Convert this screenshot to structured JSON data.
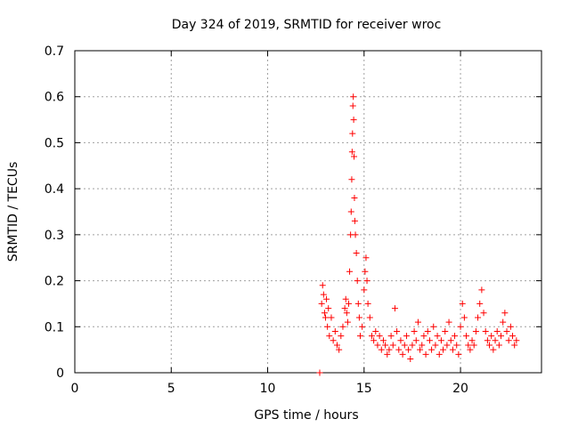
{
  "chart_data": {
    "type": "scatter",
    "title": "Day 324 of 2019, SRMTID for receiver wroc",
    "xlabel": "GPS time / hours",
    "ylabel": "SRMTID / TECUs",
    "xlim": [
      0,
      24.2
    ],
    "ylim": [
      0,
      0.7
    ],
    "x_ticks": [
      0,
      5,
      10,
      15,
      20
    ],
    "x_tick_labels": [
      "0",
      "5",
      "10",
      "15",
      "20"
    ],
    "y_ticks": [
      0,
      0.1,
      0.2,
      0.3,
      0.4,
      0.5,
      0.6,
      0.7
    ],
    "y_tick_labels": [
      "0",
      "0.1",
      "0.2",
      "0.3",
      "0.4",
      "0.5",
      "0.6",
      "0.7"
    ],
    "grid": true,
    "marker": "plus",
    "series": [
      {
        "name": "SRMTID",
        "color": "#ff0000",
        "x": [
          12.7,
          12.8,
          12.85,
          12.9,
          12.95,
          13.0,
          13.05,
          13.1,
          13.15,
          13.2,
          13.3,
          13.4,
          13.5,
          13.6,
          13.7,
          13.8,
          13.9,
          14.0,
          14.05,
          14.1,
          14.15,
          14.2,
          14.25,
          14.3,
          14.33,
          14.36,
          14.38,
          14.4,
          14.42,
          14.44,
          14.46,
          14.48,
          14.5,
          14.52,
          14.55,
          14.6,
          14.65,
          14.7,
          14.75,
          14.8,
          14.9,
          15.0,
          15.05,
          15.1,
          15.15,
          15.2,
          15.3,
          15.4,
          15.5,
          15.6,
          15.7,
          15.8,
          15.9,
          16.0,
          16.1,
          16.2,
          16.3,
          16.4,
          16.5,
          16.6,
          16.7,
          16.8,
          16.9,
          17.0,
          17.1,
          17.2,
          17.3,
          17.4,
          17.5,
          17.6,
          17.7,
          17.8,
          17.9,
          18.0,
          18.1,
          18.2,
          18.3,
          18.4,
          18.5,
          18.6,
          18.7,
          18.8,
          18.9,
          19.0,
          19.1,
          19.2,
          19.3,
          19.4,
          19.5,
          19.6,
          19.7,
          19.8,
          19.9,
          20.0,
          20.1,
          20.2,
          20.3,
          20.4,
          20.5,
          20.6,
          20.7,
          20.8,
          20.9,
          21.0,
          21.1,
          21.2,
          21.3,
          21.4,
          21.5,
          21.6,
          21.7,
          21.8,
          21.9,
          22.0,
          22.1,
          22.2,
          22.3,
          22.4,
          22.5,
          22.6,
          22.7,
          22.8,
          22.9
        ],
        "y": [
          0.0,
          0.15,
          0.19,
          0.17,
          0.13,
          0.12,
          0.16,
          0.1,
          0.14,
          0.08,
          0.12,
          0.07,
          0.09,
          0.06,
          0.05,
          0.08,
          0.1,
          0.14,
          0.16,
          0.13,
          0.11,
          0.15,
          0.22,
          0.3,
          0.35,
          0.42,
          0.48,
          0.52,
          0.58,
          0.6,
          0.55,
          0.47,
          0.38,
          0.33,
          0.3,
          0.26,
          0.2,
          0.15,
          0.12,
          0.08,
          0.1,
          0.18,
          0.22,
          0.25,
          0.2,
          0.15,
          0.12,
          0.08,
          0.07,
          0.09,
          0.06,
          0.08,
          0.05,
          0.07,
          0.06,
          0.04,
          0.05,
          0.08,
          0.06,
          0.14,
          0.09,
          0.05,
          0.07,
          0.04,
          0.06,
          0.08,
          0.05,
          0.03,
          0.06,
          0.09,
          0.07,
          0.11,
          0.05,
          0.06,
          0.08,
          0.04,
          0.09,
          0.07,
          0.05,
          0.1,
          0.06,
          0.08,
          0.04,
          0.07,
          0.05,
          0.09,
          0.06,
          0.11,
          0.07,
          0.05,
          0.08,
          0.06,
          0.04,
          0.1,
          0.15,
          0.12,
          0.08,
          0.06,
          0.05,
          0.07,
          0.06,
          0.09,
          0.12,
          0.15,
          0.18,
          0.13,
          0.09,
          0.07,
          0.06,
          0.08,
          0.05,
          0.07,
          0.09,
          0.06,
          0.08,
          0.11,
          0.13,
          0.09,
          0.07,
          0.1,
          0.08,
          0.06,
          0.07
        ]
      }
    ]
  }
}
